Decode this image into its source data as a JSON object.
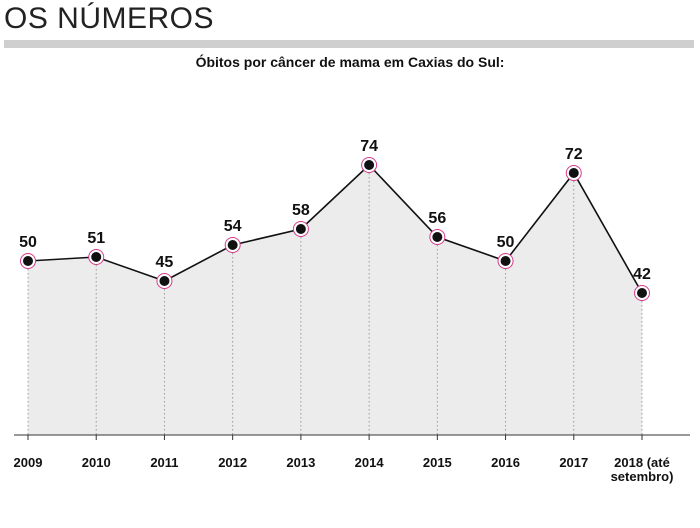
{
  "header": {
    "title": "OS NÚMEROS"
  },
  "chart_data": {
    "type": "line",
    "title": "Óbitos por câncer de mama em Caxias do Sul:",
    "categories": [
      "2009",
      "2010",
      "2011",
      "2012",
      "2013",
      "2014",
      "2015",
      "2016",
      "2017",
      "2018 (até setembro)"
    ],
    "category_lines": [
      [
        "2009"
      ],
      [
        "2010"
      ],
      [
        "2011"
      ],
      [
        "2012"
      ],
      [
        "2013"
      ],
      [
        "2014"
      ],
      [
        "2015"
      ],
      [
        "2016"
      ],
      [
        "2017"
      ],
      [
        "2018 (até",
        "setembro)"
      ]
    ],
    "series": [
      {
        "values": [
          50,
          51,
          45,
          54,
          58,
          74,
          56,
          50,
          72,
          42
        ]
      }
    ],
    "xlabel": "",
    "ylabel": "",
    "grid": false,
    "colors": {
      "line": "#111111",
      "marker": "#111111",
      "marker_ring": "#d63a8a",
      "area": "#ececec",
      "dropline": "#999999"
    }
  }
}
